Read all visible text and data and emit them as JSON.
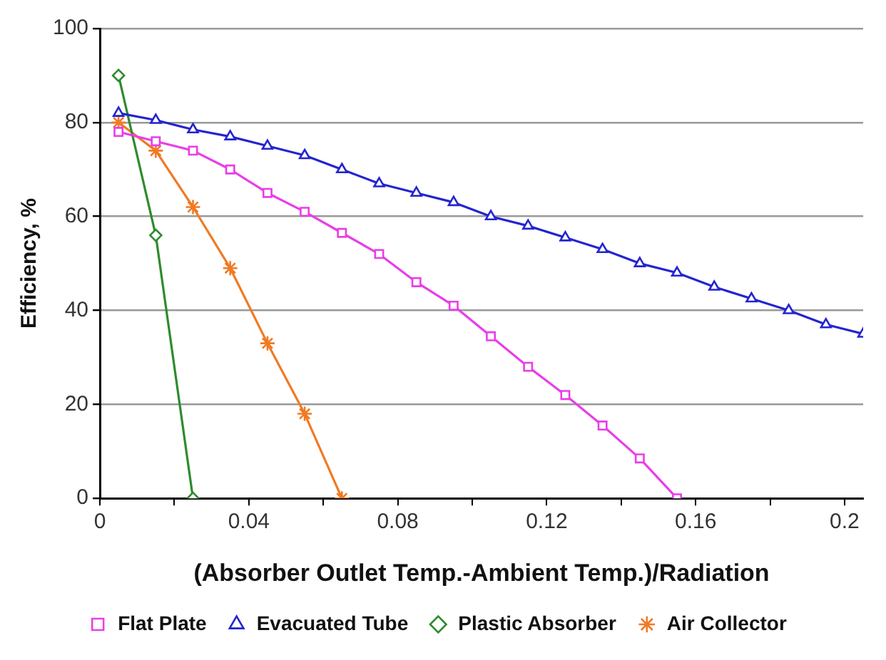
{
  "chart_data": {
    "type": "line",
    "xlabel": "(Absorber Outlet Temp.-Ambient Temp.)/Radiation",
    "ylabel": "Efficiency, %",
    "xlim": [
      0,
      0.205
    ],
    "xticks": [
      0,
      {
        "value": 0.02,
        "label": null
      },
      0.04,
      {
        "value": 0.06,
        "label": null
      },
      0.08,
      {
        "value": 0.1,
        "label": null
      },
      0.12,
      {
        "value": 0.14,
        "label": null
      },
      0.16,
      {
        "value": 0.18,
        "label": null
      },
      0.2
    ],
    "ylim": [
      0,
      100
    ],
    "yticks": [
      0,
      20,
      40,
      60,
      80,
      100
    ],
    "grid": "y",
    "legend": "bottom",
    "series": [
      {
        "name": "Flat Plate",
        "color": "#e83ee8",
        "marker": "square",
        "x": [
          0.005,
          0.015,
          0.025,
          0.035,
          0.045,
          0.055,
          0.065,
          0.075,
          0.085,
          0.095,
          0.105,
          0.115,
          0.125,
          0.135,
          0.145,
          0.155
        ],
        "values": [
          78,
          76,
          74,
          70,
          65,
          61,
          56.5,
          52,
          46,
          41,
          34.5,
          28,
          22,
          15.5,
          8.5,
          0
        ]
      },
      {
        "name": "Evacuated Tube",
        "color": "#2424d0",
        "marker": "triangle",
        "x": [
          0.005,
          0.015,
          0.025,
          0.035,
          0.045,
          0.055,
          0.065,
          0.075,
          0.085,
          0.095,
          0.105,
          0.115,
          0.125,
          0.135,
          0.145,
          0.155,
          0.165,
          0.175,
          0.185,
          0.195,
          0.205
        ],
        "values": [
          82,
          80.5,
          78.5,
          77,
          75,
          73,
          70,
          67,
          65,
          63,
          60,
          58,
          55.5,
          53,
          50,
          48,
          45,
          42.5,
          40,
          37,
          35
        ]
      },
      {
        "name": "Plastic Absorber",
        "color": "#2e8b2e",
        "marker": "diamond",
        "x": [
          0.005,
          0.015,
          0.025
        ],
        "values": [
          90,
          56,
          0
        ]
      },
      {
        "name": "Air Collector",
        "color": "#f07a24",
        "marker": "cross",
        "x": [
          0.005,
          0.015,
          0.025,
          0.035,
          0.045,
          0.055,
          0.065
        ],
        "values": [
          80,
          74,
          62,
          49,
          33,
          18,
          0
        ]
      }
    ]
  }
}
